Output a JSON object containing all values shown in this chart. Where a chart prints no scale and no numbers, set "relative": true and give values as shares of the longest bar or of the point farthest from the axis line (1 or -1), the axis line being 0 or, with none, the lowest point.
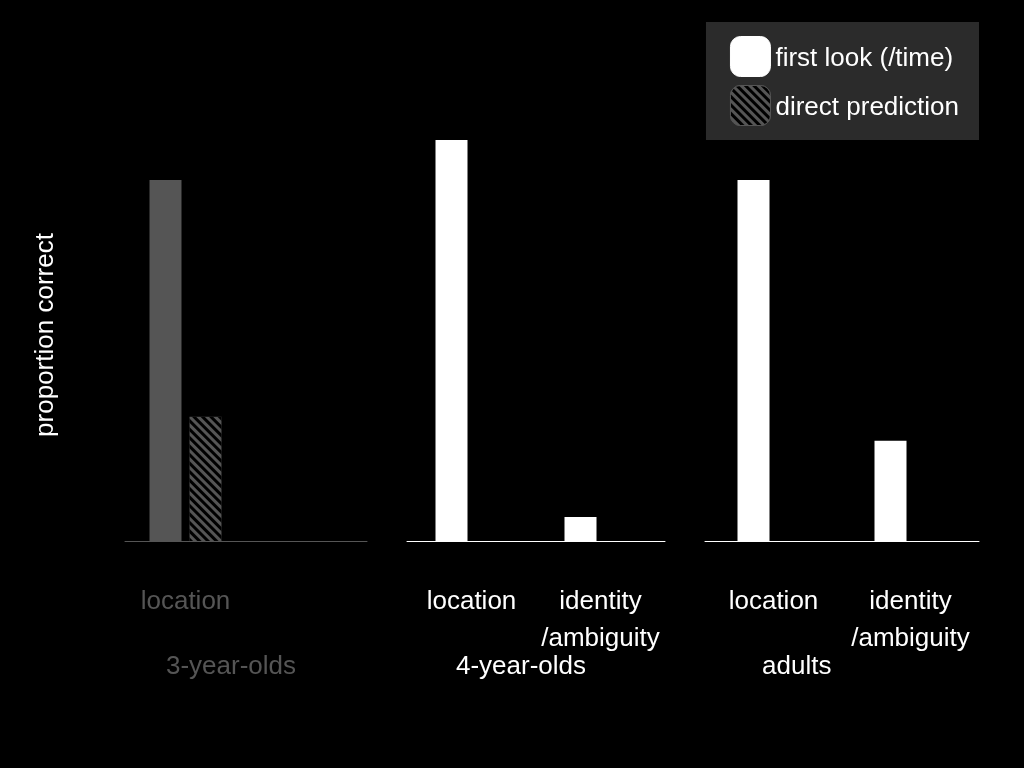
{
  "chart_data": {
    "type": "bar",
    "relative": true,
    "ylabel": "proportion correct",
    "legend": "top right",
    "categories": [
      "location",
      null,
      "location",
      "identity\n/ambiguity",
      "location",
      "identity\n/ambiguity"
    ],
    "series": [
      {
        "name": "first look (/time)",
        "color": "#ffffff",
        "colors": [
          "#555555",
          "#555555",
          "#ffffff",
          "#ffffff",
          "#ffffff",
          "#ffffff"
        ],
        "values": [
          0.9,
          null,
          1,
          0.06,
          0.9,
          0.25
        ]
      },
      {
        "name": "direct prediction",
        "color": "#555555",
        "colors": [
          "#555555",
          "#555555",
          "#ffffff",
          "#ffffff",
          "#ffffff",
          "#ffffff"
        ],
        "values": [
          0.31,
          null,
          null,
          null,
          null,
          null
        ]
      }
    ],
    "annotations": [
      "3-year-olds",
      "4-year-olds",
      "adults"
    ]
  }
}
